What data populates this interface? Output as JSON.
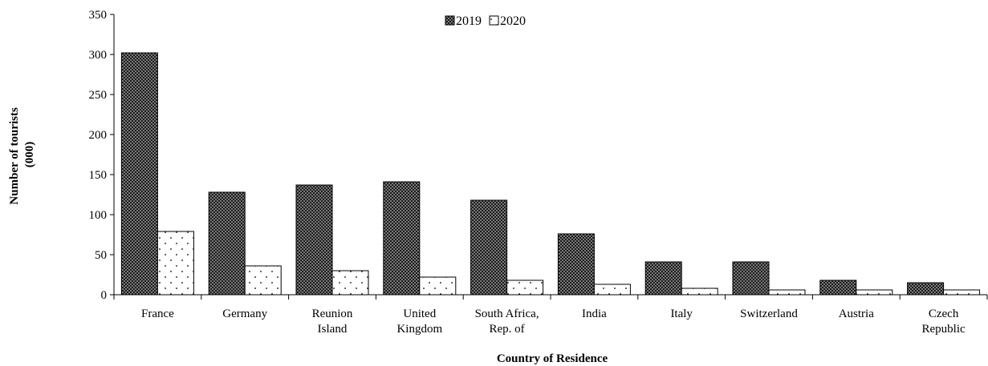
{
  "chart_data": {
    "type": "bar",
    "title": "",
    "xlabel": "Country of Residence",
    "ylabel": [
      "Number of tourists",
      "(000)"
    ],
    "ylim": [
      0,
      350
    ],
    "yticks": [
      0,
      50,
      100,
      150,
      200,
      250,
      300,
      350
    ],
    "grid": false,
    "legend_position": "top-center",
    "categories": [
      [
        "France"
      ],
      [
        "Germany"
      ],
      [
        "Reunion",
        "Island"
      ],
      [
        "United",
        "Kingdom"
      ],
      [
        "South Africa,",
        "Rep. of"
      ],
      [
        "India"
      ],
      [
        "Italy"
      ],
      [
        "Switzerland"
      ],
      [
        "Austria"
      ],
      [
        "Czech",
        "Republic"
      ]
    ],
    "series": [
      {
        "name": "2019",
        "pattern": "dark-checker",
        "values": [
          302,
          128,
          137,
          141,
          118,
          76,
          41,
          41,
          18,
          15
        ]
      },
      {
        "name": "2020",
        "pattern": "light-dots",
        "values": [
          79,
          36,
          30,
          22,
          18,
          13,
          8,
          6,
          6,
          6
        ]
      }
    ]
  }
}
